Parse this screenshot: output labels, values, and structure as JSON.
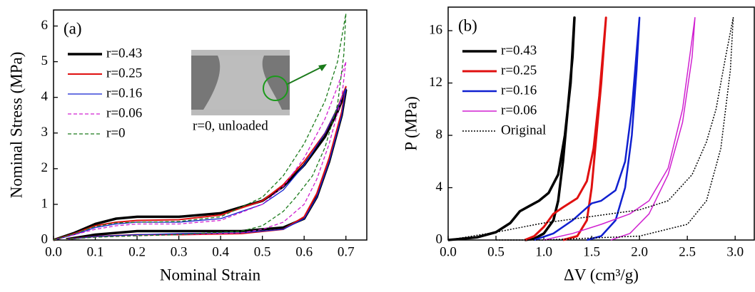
{
  "chart_data": [
    {
      "type": "line",
      "panel_label": "(a)",
      "xlabel": "Nominal Strain",
      "ylabel": "Nominal Stress (MPa)",
      "xlim": [
        0,
        0.75
      ],
      "xticks": [
        {
          "value": 0,
          "label": "0.0"
        },
        0.1,
        0.2,
        0.3,
        0.4,
        0.5,
        0.6,
        0.7
      ],
      "ylim": [
        0,
        6.45
      ],
      "yticks": [
        0,
        1,
        2,
        3,
        4,
        5,
        6
      ],
      "legend": "upper-left",
      "annotation": {
        "text": "r=0, unloaded",
        "color": "#1a7a1a"
      },
      "series": [
        {
          "name": "r=0.43",
          "color": "#000000",
          "style": "solid",
          "width": 3.5,
          "x": [
            0,
            0.05,
            0.1,
            0.15,
            0.2,
            0.3,
            0.4,
            0.5,
            0.55,
            0.6,
            0.65,
            0.68,
            0.7,
            0.69,
            0.66,
            0.63,
            0.6,
            0.55,
            0.45,
            0.3,
            0.2,
            0.1,
            0.03
          ],
          "values": [
            0,
            0.2,
            0.45,
            0.6,
            0.65,
            0.65,
            0.75,
            1.1,
            1.5,
            2.1,
            2.9,
            3.6,
            4.2,
            3.5,
            2.2,
            1.2,
            0.6,
            0.35,
            0.25,
            0.25,
            0.25,
            0.15,
            0.02
          ]
        },
        {
          "name": "r=0.25",
          "color": "#e01010",
          "style": "solid",
          "width": 2,
          "x": [
            0,
            0.05,
            0.1,
            0.15,
            0.2,
            0.3,
            0.4,
            0.5,
            0.55,
            0.6,
            0.65,
            0.68,
            0.7,
            0.69,
            0.66,
            0.63,
            0.6,
            0.55,
            0.45,
            0.3,
            0.2,
            0.1,
            0.03
          ],
          "values": [
            0,
            0.18,
            0.4,
            0.5,
            0.55,
            0.57,
            0.7,
            1.1,
            1.55,
            2.2,
            3.0,
            3.7,
            4.3,
            3.6,
            2.3,
            1.3,
            0.65,
            0.3,
            0.18,
            0.15,
            0.15,
            0.1,
            0.02
          ]
        },
        {
          "name": "r=0.16",
          "color": "#1020d0",
          "style": "solid",
          "width": 1.3,
          "x": [
            0,
            0.05,
            0.1,
            0.15,
            0.2,
            0.3,
            0.4,
            0.5,
            0.55,
            0.6,
            0.65,
            0.68,
            0.7,
            0.69,
            0.66,
            0.63,
            0.6,
            0.55,
            0.45,
            0.3,
            0.2,
            0.1,
            0.03
          ],
          "values": [
            0,
            0.15,
            0.35,
            0.45,
            0.5,
            0.5,
            0.6,
            1.0,
            1.4,
            2.1,
            3.0,
            3.7,
            4.25,
            3.5,
            2.2,
            1.2,
            0.6,
            0.3,
            0.2,
            0.18,
            0.15,
            0.1,
            0.02
          ]
        },
        {
          "name": "r=0.06",
          "color": "#d020d0",
          "style": "dashed",
          "width": 1.3,
          "x": [
            0,
            0.05,
            0.1,
            0.15,
            0.2,
            0.3,
            0.4,
            0.5,
            0.55,
            0.6,
            0.65,
            0.68,
            0.7,
            0.69,
            0.66,
            0.63,
            0.6,
            0.55,
            0.5,
            0.45,
            0.3,
            0.2,
            0.1,
            0.03
          ],
          "values": [
            0,
            0.15,
            0.3,
            0.4,
            0.45,
            0.45,
            0.55,
            1.0,
            1.5,
            2.3,
            3.4,
            4.3,
            5.0,
            4.0,
            2.7,
            1.7,
            1.0,
            0.5,
            0.3,
            0.2,
            0.15,
            0.12,
            0.08,
            0.02
          ]
        },
        {
          "name": "r=0",
          "color": "#1a7a1a",
          "style": "dashed",
          "width": 1.3,
          "x": [
            0,
            0.05,
            0.1,
            0.15,
            0.2,
            0.3,
            0.4,
            0.5,
            0.55,
            0.6,
            0.65,
            0.68,
            0.7,
            0.695,
            0.68,
            0.65,
            0.62,
            0.58,
            0.55,
            0.5,
            0.45,
            0.3,
            0.2,
            0.1,
            0.03
          ],
          "values": [
            0,
            0.18,
            0.38,
            0.48,
            0.5,
            0.52,
            0.65,
            1.2,
            1.8,
            2.7,
            3.9,
            5.0,
            6.35,
            5.2,
            3.8,
            2.6,
            1.8,
            1.2,
            0.8,
            0.4,
            0.25,
            0.15,
            0.12,
            0.08,
            0.02
          ]
        }
      ]
    },
    {
      "type": "line",
      "panel_label": "(b)",
      "xlabel": "ΔV (cm³/g)",
      "ylabel": "P (MPa)",
      "xlim": [
        0,
        3.2
      ],
      "xticks": [
        {
          "value": 0,
          "label": "0.0"
        },
        0.5,
        {
          "value": 1,
          "label": "1.0"
        },
        1.5,
        {
          "value": 2,
          "label": "2.0"
        },
        2.5,
        {
          "value": 3,
          "label": "3.0"
        }
      ],
      "ylim": [
        0,
        17.8
      ],
      "yticks": [
        0,
        4,
        8,
        12,
        16
      ],
      "legend": "upper-left",
      "series": [
        {
          "name": "r=0.43",
          "color": "#000000",
          "style": "solid",
          "width": 3.5,
          "x": [
            0,
            0.3,
            0.5,
            0.65,
            0.75,
            0.85,
            0.95,
            1.05,
            1.15,
            1.22,
            1.28,
            1.32,
            1.3,
            1.25,
            1.2,
            1.15,
            1.1,
            1.0,
            0.9,
            0.8
          ],
          "values": [
            0,
            0.2,
            0.6,
            1.3,
            2.2,
            2.6,
            3.0,
            3.6,
            5.0,
            8.0,
            12.0,
            17.0,
            14.0,
            10.0,
            6.0,
            3.0,
            1.5,
            0.5,
            0.1,
            0
          ]
        },
        {
          "name": "r=0.25",
          "color": "#e01010",
          "style": "solid",
          "width": 3,
          "x": [
            0.8,
            0.9,
            1.0,
            1.1,
            1.2,
            1.35,
            1.45,
            1.52,
            1.58,
            1.65,
            1.6,
            1.55,
            1.5,
            1.45,
            1.35,
            1.2
          ],
          "values": [
            0,
            0.3,
            1.0,
            2.0,
            2.5,
            3.2,
            4.5,
            7.0,
            11.0,
            17.0,
            12.0,
            8.0,
            4.0,
            1.5,
            0.3,
            0
          ]
        },
        {
          "name": "r=0.16",
          "color": "#1020d0",
          "style": "solid",
          "width": 2.5,
          "x": [
            0.9,
            1.1,
            1.3,
            1.5,
            1.6,
            1.75,
            1.85,
            1.92,
            2.0,
            1.97,
            1.92,
            1.85,
            1.75,
            1.6,
            1.45
          ],
          "values": [
            0,
            0.5,
            1.5,
            2.8,
            3.0,
            3.8,
            6.0,
            10.0,
            17.0,
            13.0,
            8.0,
            4.0,
            1.5,
            0.3,
            0
          ]
        },
        {
          "name": "r=0.06",
          "color": "#d020d0",
          "style": "solid",
          "width": 1.5,
          "x": [
            1.0,
            1.3,
            1.6,
            1.9,
            2.1,
            2.3,
            2.45,
            2.58,
            2.55,
            2.45,
            2.3,
            2.1,
            1.9,
            1.7
          ],
          "values": [
            0,
            0.5,
            1.2,
            2.0,
            3.0,
            5.5,
            10.0,
            17.0,
            14.0,
            9.0,
            5.0,
            2.0,
            0.5,
            0
          ]
        },
        {
          "name": "Original",
          "color": "#000000",
          "style": "dotted",
          "width": 1.5,
          "x": [
            0,
            0.5,
            1.0,
            1.5,
            2.0,
            2.3,
            2.55,
            2.7,
            2.8,
            2.9,
            2.98,
            2.95,
            2.85,
            2.7,
            2.5,
            2.0,
            1.0,
            0.5
          ],
          "values": [
            0,
            0.6,
            1.3,
            1.8,
            2.3,
            3.0,
            5.0,
            7.5,
            10.0,
            14.0,
            17.0,
            13.0,
            7.0,
            3.0,
            1.2,
            0.3,
            0,
            0
          ]
        }
      ]
    }
  ]
}
